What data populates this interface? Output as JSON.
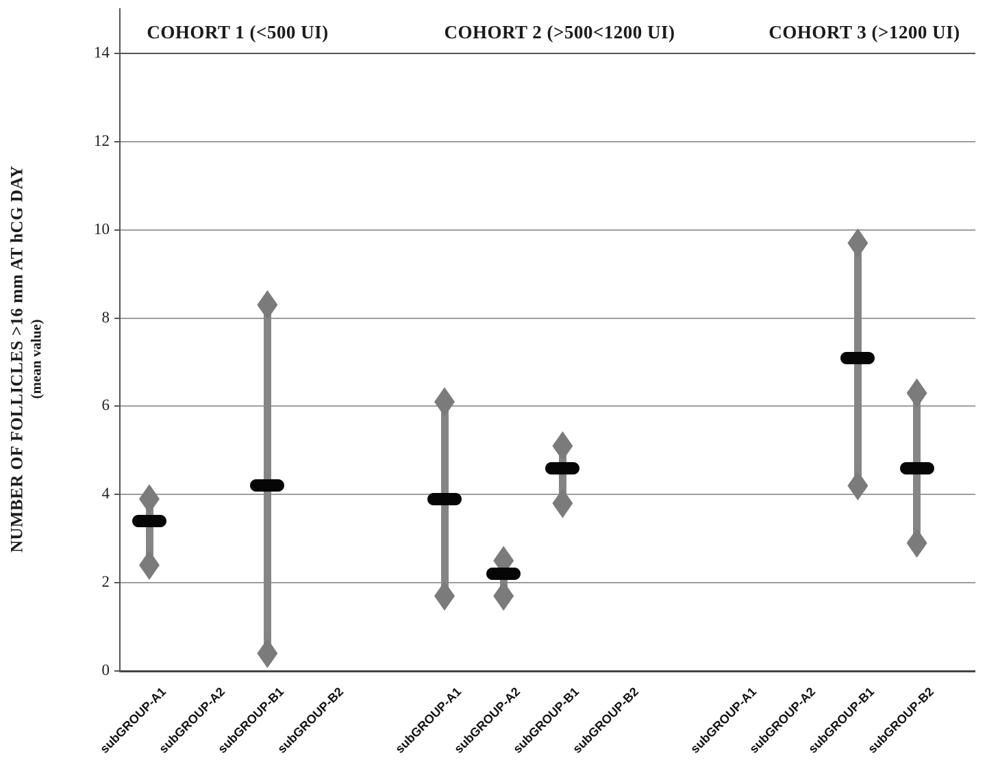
{
  "chart_data": {
    "type": "scatter",
    "subtype": "high-low-mean-range",
    "title": "",
    "ylabel_line1": "NUMBER OF FOLLICLES  >16 mm AT hCG DAY",
    "ylabel_line2": "(mean value)",
    "xlabel": "",
    "ylim": [
      0,
      14
    ],
    "yticks": [
      0,
      2,
      4,
      6,
      8,
      10,
      12,
      14
    ],
    "grid": true,
    "legend": "none",
    "marker_shapes": {
      "range_end": "diamond",
      "mean": "black-rounded-dash",
      "range": "thick-gray-bar"
    },
    "cohorts": [
      {
        "label": "COHORT 1 (<500 UI)",
        "groups": [
          {
            "label": "subGROUP-A1",
            "mean": 3.4,
            "high": 3.9,
            "low": 2.4
          },
          {
            "label": "subGROUP-A2",
            "mean": null,
            "high": null,
            "low": null
          },
          {
            "label": "subGROUP-B1",
            "mean": 4.2,
            "high": 8.3,
            "low": 0.4
          },
          {
            "label": "subGROUP-B2",
            "mean": null,
            "high": null,
            "low": null
          }
        ]
      },
      {
        "label": "COHORT 2 (>500<1200 UI)",
        "groups": [
          {
            "label": "subGROUP-A1",
            "mean": 3.9,
            "high": 6.1,
            "low": 1.7
          },
          {
            "label": "subGROUP-A2",
            "mean": 2.2,
            "high": 2.5,
            "low": 1.7
          },
          {
            "label": "subGROUP-B1",
            "mean": 4.6,
            "high": 5.1,
            "low": 3.8
          },
          {
            "label": "subGROUP-B2",
            "mean": null,
            "high": null,
            "low": null
          }
        ]
      },
      {
        "label": "COHORT 3 (>1200 UI)",
        "groups": [
          {
            "label": "subGROUP-A1",
            "mean": null,
            "high": null,
            "low": null
          },
          {
            "label": "subGROUP-A2",
            "mean": null,
            "high": null,
            "low": null
          },
          {
            "label": "subGROUP-B1",
            "mean": 7.1,
            "high": 9.7,
            "low": 4.2
          },
          {
            "label": "subGROUP-B2",
            "mean": 4.6,
            "high": 6.3,
            "low": 2.9
          }
        ]
      }
    ],
    "colors": {
      "range_bar": "#858585",
      "diamond": "#7b7b7b",
      "mean_marker": "#060606",
      "gridline": "#9e9e9e",
      "top_line": "#555555",
      "axis_line": "#444444",
      "text": "#1b1b1b"
    }
  }
}
